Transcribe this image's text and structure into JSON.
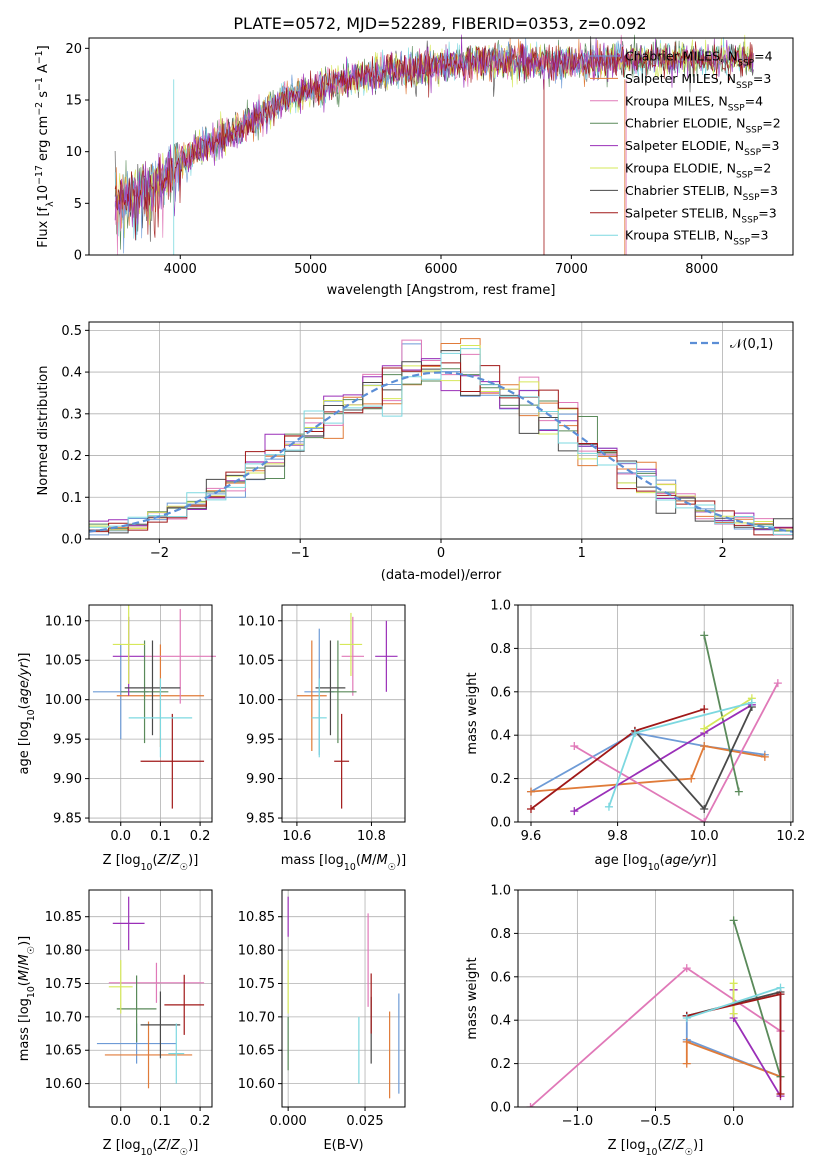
{
  "title": "PLATE=0572, MJD=52289, FIBERID=0353, z=0.092",
  "colors": [
    "#6e9bd6",
    "#e07b39",
    "#e079b8",
    "#5a8a5a",
    "#9a2fb8",
    "#d6e85a",
    "#4a4a4a",
    "#a01818",
    "#7dd8e0"
  ],
  "models": [
    {
      "label": "Chabrier MILES, N",
      "nssp": "4"
    },
    {
      "label": "Salpeter MILES, N",
      "nssp": "3"
    },
    {
      "label": "Kroupa MILES, N",
      "nssp": "4"
    },
    {
      "label": "Chabrier ELODIE, N",
      "nssp": "2"
    },
    {
      "label": "Salpeter ELODIE, N",
      "nssp": "3"
    },
    {
      "label": "Kroupa ELODIE, N",
      "nssp": "2"
    },
    {
      "label": "Chabrier STELIB, N",
      "nssp": "3"
    },
    {
      "label": "Salpeter STELIB, N",
      "nssp": "3"
    },
    {
      "label": "Kroupa STELIB, N",
      "nssp": "3"
    }
  ],
  "chart_data": [
    {
      "type": "line",
      "id": "spectrum",
      "xlabel": "wavelength [Angstrom, rest frame]",
      "ylabel": "Flux [f_λ10^-17 erg cm^-2 s^-1 A^-1]",
      "xlim": [
        3300,
        8700
      ],
      "ylim": [
        0,
        21
      ],
      "xticks": [
        4000,
        5000,
        6000,
        7000,
        8000
      ],
      "yticks": [
        0,
        5,
        10,
        15,
        20
      ],
      "continuum": {
        "x": [
          3500,
          3800,
          4000,
          4200,
          4500,
          4800,
          5000,
          5500,
          6000,
          6500,
          7000,
          7500,
          8000,
          8400
        ],
        "y": [
          5,
          6.5,
          9,
          10.5,
          12.5,
          15,
          16,
          17.5,
          18.5,
          18.8,
          18.5,
          19,
          19,
          19
        ]
      },
      "grid": false,
      "legend": "right"
    },
    {
      "type": "line",
      "id": "residuals",
      "xlabel": "(data-model)/error",
      "ylabel": "Normed distribution",
      "xlim": [
        -2.5,
        2.5
      ],
      "ylim": [
        0,
        0.52
      ],
      "xticks": [
        -2,
        -1,
        0,
        1,
        2
      ],
      "yticks": [
        0.0,
        0.1,
        0.2,
        0.3,
        0.4,
        0.5
      ],
      "reference_label": "𝒩(0,1)",
      "grid": true,
      "legend": "top-right"
    },
    {
      "type": "scatter",
      "id": "Z-age",
      "xlabel": "Z [log10(Z/Z☉)]",
      "ylabel": "age  [log10(age/yr)]",
      "xlim": [
        -0.08,
        0.23
      ],
      "ylim": [
        9.845,
        10.12
      ],
      "xticks": [
        0.0,
        0.1,
        0.2
      ],
      "yticks": [
        9.85,
        9.9,
        9.95,
        10.0,
        10.05,
        10.1
      ],
      "points": [
        {
          "x": 0.0,
          "y": 10.01,
          "xe": 0.07,
          "ye": 0.06
        },
        {
          "x": 0.1,
          "y": 10.005,
          "xe": 0.11,
          "ye": 0.065
        },
        {
          "x": 0.15,
          "y": 10.055,
          "xe": 0.09,
          "ye": 0.06
        },
        {
          "x": 0.06,
          "y": 10.01,
          "xe": 0.06,
          "ye": 0.065
        },
        {
          "x": 0.02,
          "y": 10.055,
          "xe": 0.04,
          "ye": 0.05
        },
        {
          "x": 0.02,
          "y": 10.07,
          "xe": 0.04,
          "ye": 0.05
        },
        {
          "x": 0.08,
          "y": 10.015,
          "xe": 0.07,
          "ye": 0.06
        },
        {
          "x": 0.13,
          "y": 9.922,
          "xe": 0.08,
          "ye": 0.06
        },
        {
          "x": 0.1,
          "y": 9.977,
          "xe": 0.08,
          "ye": 0.05
        }
      ]
    },
    {
      "type": "scatter",
      "id": "mass-age",
      "xlabel": "mass [log10(M/M☉)]",
      "ylabel": "",
      "xlim": [
        10.56,
        10.89
      ],
      "ylim": [
        9.845,
        10.12
      ],
      "xticks": [
        10.6,
        10.8
      ],
      "yticks": [
        9.85,
        9.9,
        9.95,
        10.0,
        10.05,
        10.1
      ],
      "points": [
        {
          "x": 10.66,
          "y": 10.01,
          "xe": 0.04,
          "ye": 0.08
        },
        {
          "x": 10.64,
          "y": 10.005,
          "xe": 0.04,
          "ye": 0.07
        },
        {
          "x": 10.75,
          "y": 10.055,
          "xe": 0.03,
          "ye": 0.05
        },
        {
          "x": 10.71,
          "y": 10.01,
          "xe": 0.05,
          "ye": 0.065
        },
        {
          "x": 10.84,
          "y": 10.055,
          "xe": 0.03,
          "ye": 0.045
        },
        {
          "x": 10.745,
          "y": 10.07,
          "xe": 0.03,
          "ye": 0.04
        },
        {
          "x": 10.69,
          "y": 10.015,
          "xe": 0.04,
          "ye": 0.06
        },
        {
          "x": 10.72,
          "y": 9.922,
          "xe": 0.02,
          "ye": 0.06
        },
        {
          "x": 10.66,
          "y": 9.977,
          "xe": 0.02,
          "ye": 0.05
        }
      ]
    },
    {
      "type": "line",
      "id": "age-weight",
      "xlabel": "age  [log10(age/yr)]",
      "ylabel": "mass weight",
      "xlim": [
        9.57,
        10.205
      ],
      "ylim": [
        0,
        1
      ],
      "xticks": [
        9.6,
        9.8,
        10.0,
        10.2
      ],
      "yticks": [
        0.0,
        0.2,
        0.4,
        0.6,
        0.8,
        1.0
      ],
      "series": [
        {
          "x": [
            9.6,
            9.84,
            10.0,
            10.14
          ],
          "y": [
            0.14,
            0.41,
            0.35,
            0.31
          ]
        },
        {
          "x": [
            9.6,
            9.97,
            10.0,
            10.14
          ],
          "y": [
            0.14,
            0.2,
            0.35,
            0.3
          ]
        },
        {
          "x": [
            9.7,
            10.0,
            10.17
          ],
          "y": [
            0.35,
            0.0,
            0.64
          ]
        },
        {
          "x": [
            10.0,
            10.08
          ],
          "y": [
            0.86,
            0.14
          ]
        },
        {
          "x": [
            9.7,
            10.0,
            10.11
          ],
          "y": [
            0.05,
            0.41,
            0.54
          ]
        },
        {
          "x": [
            10.0,
            10.11
          ],
          "y": [
            0.43,
            0.57
          ]
        },
        {
          "x": [
            9.84,
            10.0,
            10.11
          ],
          "y": [
            0.42,
            0.06,
            0.53
          ]
        },
        {
          "x": [
            9.6,
            9.84,
            10.0
          ],
          "y": [
            0.06,
            0.42,
            0.52
          ]
        },
        {
          "x": [
            9.78,
            9.84,
            10.11
          ],
          "y": [
            0.07,
            0.41,
            0.55
          ]
        }
      ]
    },
    {
      "type": "scatter",
      "id": "Z-mass",
      "xlabel": "Z [log10(Z/Z☉)]",
      "ylabel": "mass [log10(M/M☉)]",
      "xlim": [
        -0.08,
        0.23
      ],
      "ylim": [
        10.565,
        10.89
      ],
      "xticks": [
        0.0,
        0.1,
        0.2
      ],
      "yticks": [
        10.6,
        10.65,
        10.7,
        10.75,
        10.8,
        10.85
      ],
      "points": [
        {
          "x": 0.04,
          "y": 10.66,
          "xe": 0.1,
          "ye": 0.03
        },
        {
          "x": 0.07,
          "y": 10.643,
          "xe": 0.11,
          "ye": 0.05
        },
        {
          "x": 0.09,
          "y": 10.751,
          "xe": 0.12,
          "ye": 0.03
        },
        {
          "x": 0.04,
          "y": 10.712,
          "xe": 0.05,
          "ye": 0.05
        },
        {
          "x": 0.02,
          "y": 10.84,
          "xe": 0.04,
          "ye": 0.04
        },
        {
          "x": 0.0,
          "y": 10.745,
          "xe": 0.03,
          "ye": 0.04
        },
        {
          "x": 0.1,
          "y": 10.688,
          "xe": 0.05,
          "ye": 0.05
        },
        {
          "x": 0.16,
          "y": 10.718,
          "xe": 0.05,
          "ye": 0.045
        },
        {
          "x": 0.14,
          "y": 10.645,
          "xe": 0.02,
          "ye": 0.045
        }
      ]
    },
    {
      "type": "scatter",
      "id": "EBV-mass",
      "xlabel": "E(B-V)",
      "ylabel": "",
      "xlim": [
        -0.002,
        0.038
      ],
      "ylim": [
        10.565,
        10.89
      ],
      "xticks": [
        0.0,
        0.025
      ],
      "yticks": [
        10.6,
        10.65,
        10.7,
        10.75,
        10.8,
        10.85
      ],
      "points": [
        {
          "x": 0.036,
          "y": 10.66,
          "ye": 0.075
        },
        {
          "x": 0.033,
          "y": 10.643,
          "ye": 0.065
        },
        {
          "x": 0.026,
          "y": 10.785,
          "ye": 0.07
        },
        {
          "x": 0.0,
          "y": 10.66,
          "ye": 0.04
        },
        {
          "x": 0.0,
          "y": 10.85,
          "ye": 0.03
        },
        {
          "x": 0.0,
          "y": 10.745,
          "ye": 0.04
        },
        {
          "x": 0.027,
          "y": 10.68,
          "ye": 0.05
        },
        {
          "x": 0.027,
          "y": 10.72,
          "ye": 0.045
        },
        {
          "x": 0.023,
          "y": 10.65,
          "ye": 0.05
        }
      ]
    },
    {
      "type": "line",
      "id": "Z-weight",
      "xlabel": "Z [log10(Z/Z☉)]",
      "ylabel": "mass weight",
      "xlim": [
        -1.38,
        0.38
      ],
      "ylim": [
        0,
        1
      ],
      "xticks": [
        -1.0,
        -0.5,
        0.0
      ],
      "yticks": [
        0.0,
        0.2,
        0.4,
        0.6,
        0.8,
        1.0
      ],
      "xtick_labels": [
        "−1.0",
        "−0.5",
        "0.0"
      ],
      "series": [
        {
          "x": [
            -0.3,
            -0.3,
            0.3,
            0.3
          ],
          "y": [
            0.42,
            0.31,
            0.14,
            0.52
          ]
        },
        {
          "x": [
            -0.3,
            -0.3,
            0.3
          ],
          "y": [
            0.2,
            0.3,
            0.14
          ]
        },
        {
          "x": [
            -1.3,
            -0.3,
            0.3
          ],
          "y": [
            0.0,
            0.64,
            0.35
          ]
        },
        {
          "x": [
            0.0,
            0.3
          ],
          "y": [
            0.86,
            0.14
          ]
        },
        {
          "x": [
            0.0,
            0.0,
            0.3
          ],
          "y": [
            0.54,
            0.41,
            0.05
          ]
        },
        {
          "x": [
            0.0,
            0.0
          ],
          "y": [
            0.43,
            0.57
          ]
        },
        {
          "x": [
            -0.3,
            0.3
          ],
          "y": [
            0.42,
            0.53
          ]
        },
        {
          "x": [
            -0.3,
            0.3,
            0.3
          ],
          "y": [
            0.42,
            0.52,
            0.06
          ]
        },
        {
          "x": [
            -0.3,
            0.3
          ],
          "y": [
            0.41,
            0.55
          ]
        }
      ]
    }
  ]
}
